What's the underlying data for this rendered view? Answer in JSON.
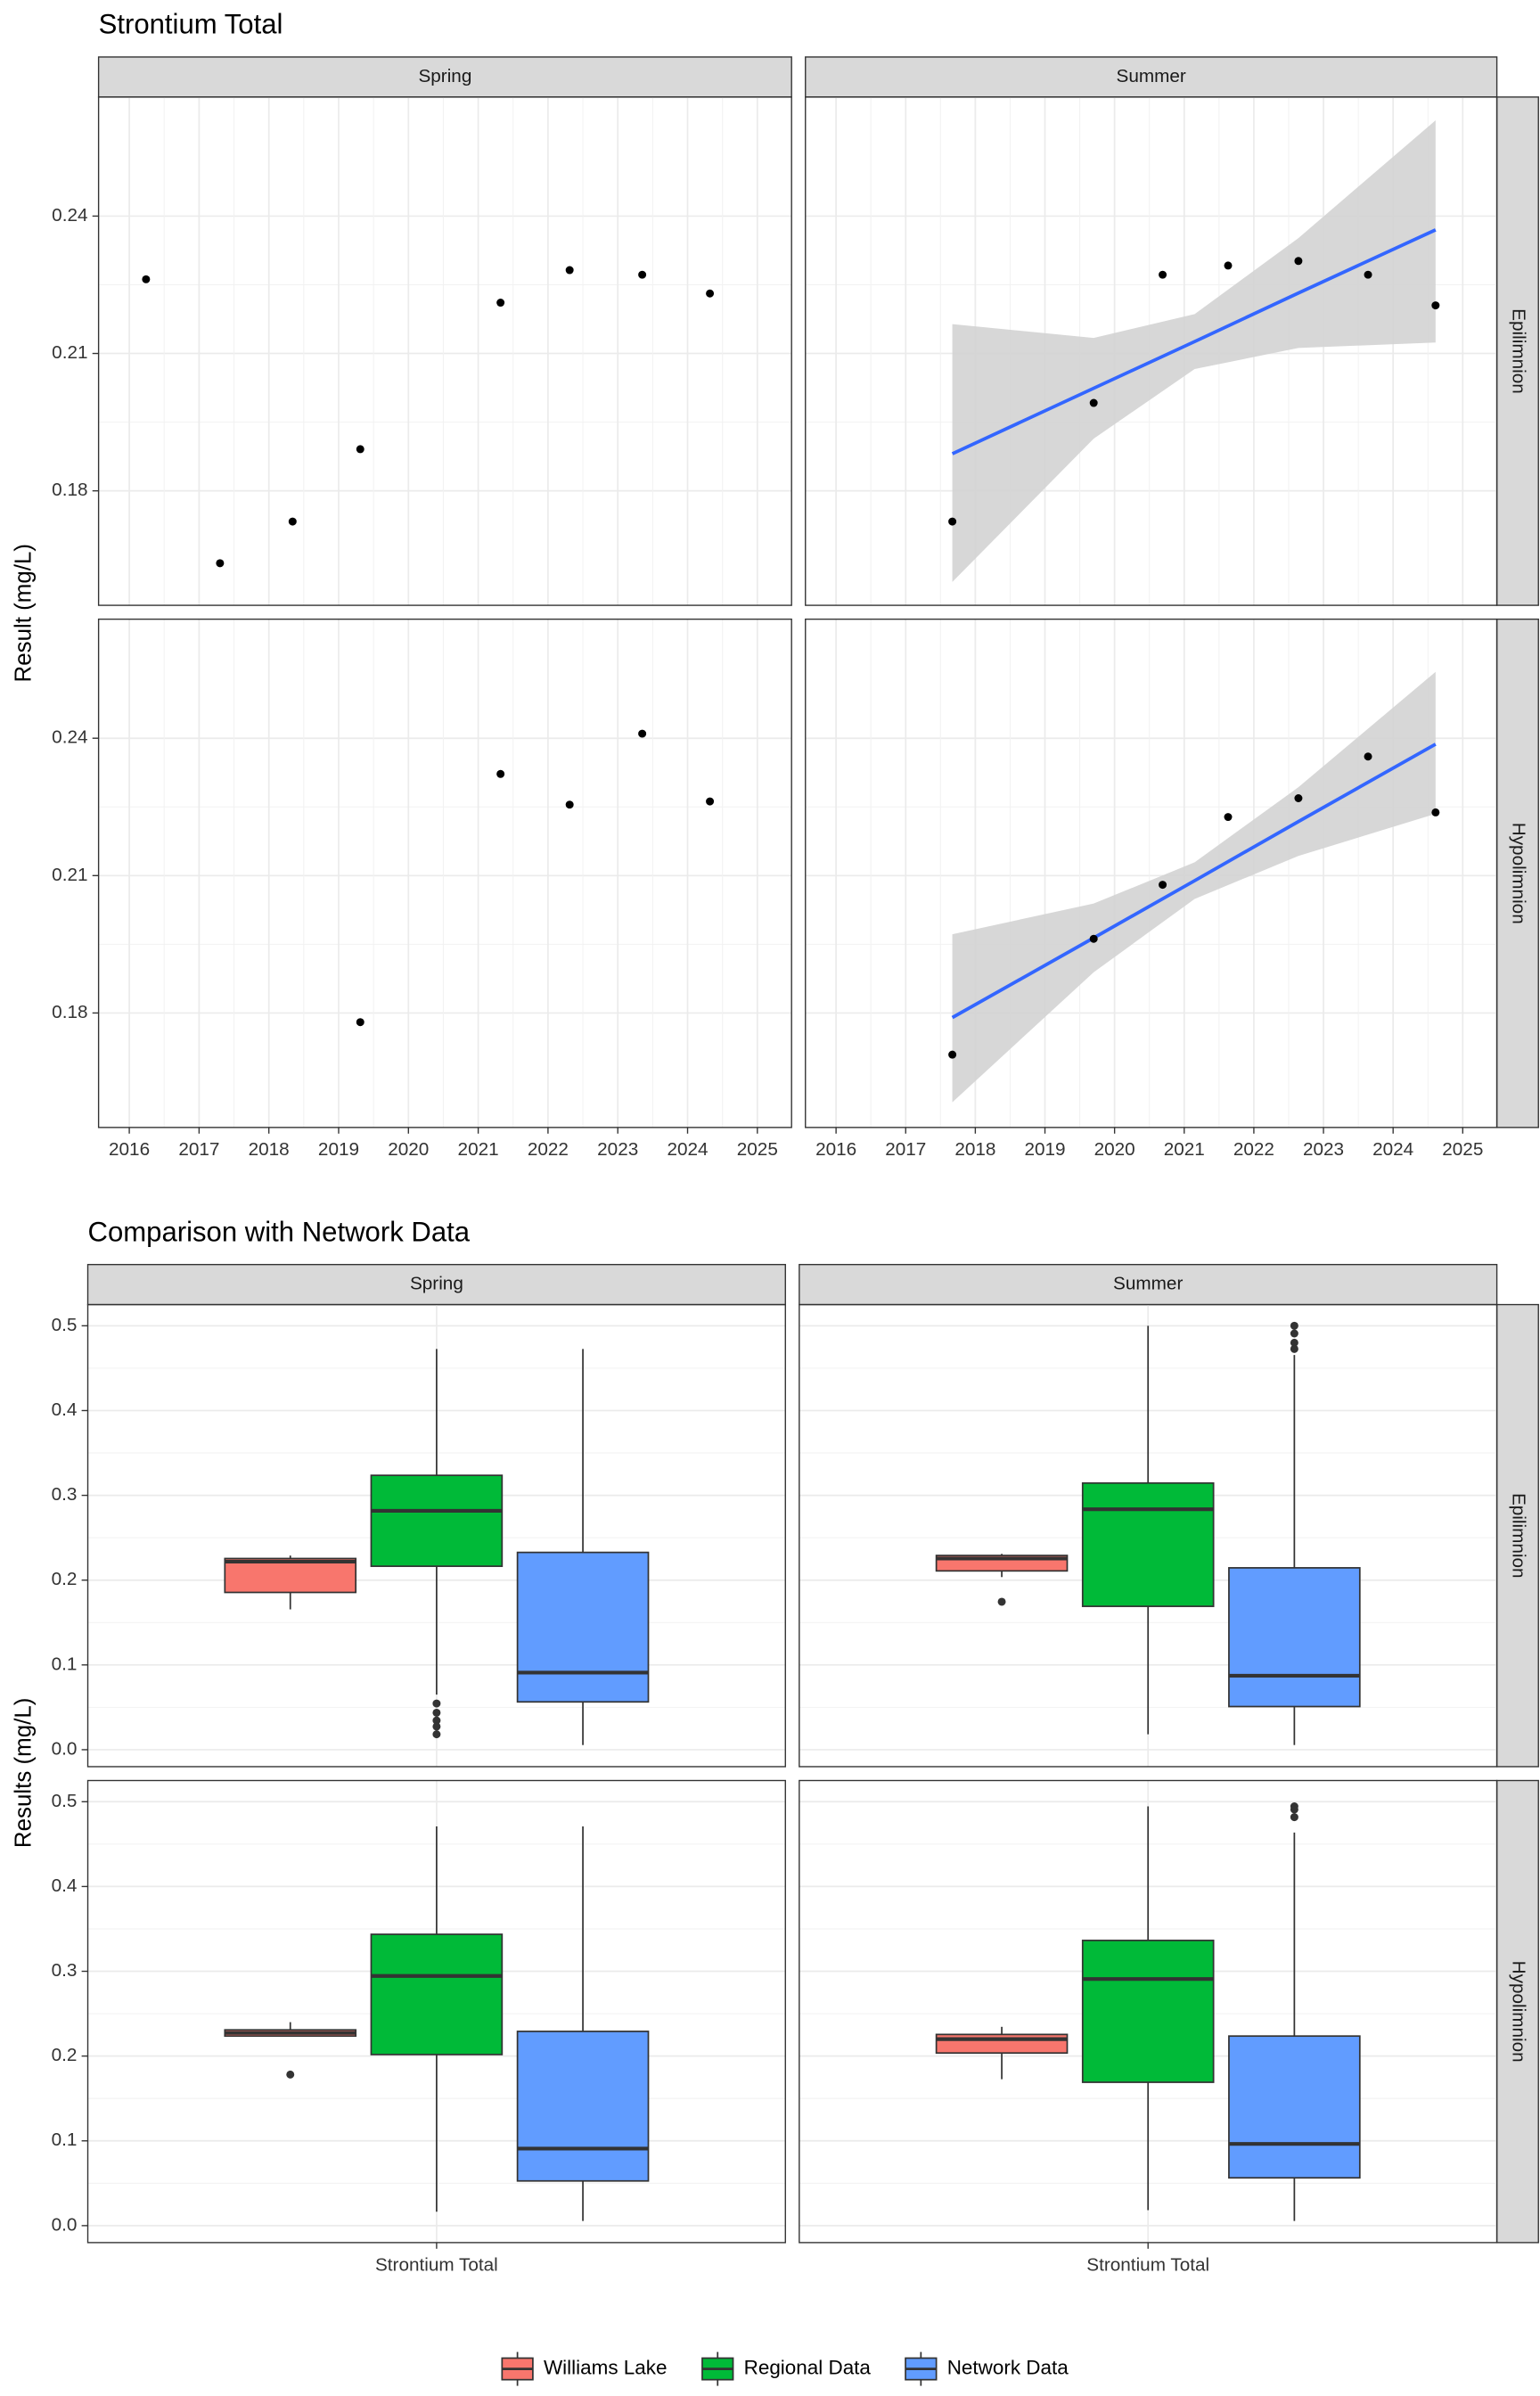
{
  "chart_data": [
    {
      "type": "scatter",
      "title": "Strontium Total",
      "y_label": "Result (mg/L)",
      "columns": [
        "Spring",
        "Summer"
      ],
      "rows": [
        "Epilimnion",
        "Hypolimnion"
      ],
      "xlim": [
        2015.56,
        2025.49
      ],
      "xticks": [
        2016,
        2017,
        2018,
        2019,
        2020,
        2021,
        2022,
        2023,
        2024,
        2025
      ],
      "ylim": [
        0.155,
        0.266
      ],
      "yticks": [
        0.18,
        0.21,
        0.24
      ],
      "grid": true,
      "point_color": "#000000",
      "trend_color": "#3366ff",
      "band_color": "#d3d3d3",
      "panels": [
        [
          {
            "x": [
              2016.24,
              2017.3,
              2018.34,
              2019.31,
              2021.32,
              2022.31,
              2023.35,
              2024.32
            ],
            "values": [
              0.2262,
              0.1642,
              0.1733,
              0.1891,
              0.2211,
              0.2282,
              0.2272,
              0.2231
            ]
          },
          {
            "x": [
              2017.67,
              2019.7,
              2020.69,
              2021.63,
              2022.64,
              2023.64,
              2024.61
            ],
            "values": [
              0.1733,
              0.1992,
              0.2272,
              0.2292,
              0.2302,
              0.2272,
              0.2205
            ],
            "trend": {
              "x": [
                2017.67,
                2019.7,
                2021.15,
                2022.64,
                2024.61
              ],
              "fit": [
                0.1881,
                0.2024,
                0.2126,
                0.2232,
                0.237
              ],
              "lower": [
                0.1601,
                0.1914,
                0.2066,
                0.2112,
                0.2124
              ],
              "upper": [
                0.2164,
                0.2134,
                0.2186,
                0.2352,
                0.2609
              ]
            }
          }
        ],
        [
          {
            "x": [
              2019.31,
              2021.32,
              2022.31,
              2023.35,
              2024.32
            ],
            "values": [
              0.178,
              0.2322,
              0.2255,
              0.241,
              0.2262
            ]
          },
          {
            "x": [
              2017.67,
              2019.7,
              2020.69,
              2021.63,
              2022.64,
              2023.64,
              2024.61
            ],
            "values": [
              0.1709,
              0.1962,
              0.208,
              0.2228,
              0.2269,
              0.236,
              0.2238
            ],
            "trend": {
              "x": [
                2017.67,
                2019.7,
                2021.15,
                2022.64,
                2024.61
              ],
              "fit": [
                0.179,
                0.1964,
                0.2089,
                0.2218,
                0.2387
              ],
              "lower": [
                0.1605,
                0.1889,
                0.2049,
                0.2143,
                0.2235
              ],
              "upper": [
                0.1972,
                0.2039,
                0.2129,
                0.2293,
                0.2545
              ]
            }
          }
        ]
      ]
    },
    {
      "type": "box",
      "title": "Comparison with Network Data",
      "y_label": "Results (mg/L)",
      "columns": [
        "Spring",
        "Summer"
      ],
      "rows": [
        "Epilimnion",
        "Hypolimnion"
      ],
      "categories": [
        "Strontium Total"
      ],
      "ylim": [
        -0.02,
        0.525
      ],
      "yticks": [
        {
          "value": 0,
          "label": "0.0"
        },
        0.1,
        0.2,
        0.3,
        0.4,
        0.5
      ],
      "grid": true,
      "legend": "bottom",
      "series": [
        {
          "name": "Williams Lake",
          "color": "#f8766d"
        },
        {
          "name": "Regional Data",
          "color": "#00ba38"
        },
        {
          "name": "Network Data",
          "color": "#619cff"
        }
      ],
      "panels": [
        [
          [
            {
              "low": 0.1655,
              "q1": 0.1855,
              "median": 0.2218,
              "q3": 0.2255,
              "high": 0.229
            },
            {
              "low": 0.065,
              "q1": 0.2164,
              "median": 0.2818,
              "q3": 0.3236,
              "high": 0.4727,
              "outliers": [
                0.0545,
                0.0436,
                0.0345,
                0.0273,
                0.0182
              ]
            },
            {
              "low": 0.0055,
              "q1": 0.0564,
              "median": 0.0909,
              "q3": 0.2327,
              "high": 0.4727
            }
          ],
          [
            {
              "low": 0.2036,
              "q1": 0.2109,
              "median": 0.2255,
              "q3": 0.2291,
              "high": 0.231,
              "outliers": [
                0.1745
              ]
            },
            {
              "low": 0.0182,
              "q1": 0.1691,
              "median": 0.2836,
              "q3": 0.3145,
              "high": 0.5
            },
            {
              "low": 0.0055,
              "q1": 0.0509,
              "median": 0.0873,
              "q3": 0.2145,
              "high": 0.4655,
              "outliers": [
                0.5,
                0.4909,
                0.48,
                0.4727
              ]
            }
          ]
        ],
        [
          [
            {
              "low": 0.2236,
              "q1": 0.2236,
              "median": 0.2273,
              "q3": 0.2309,
              "high": 0.24,
              "outliers": [
                0.1782
              ]
            },
            {
              "low": 0.0164,
              "q1": 0.2018,
              "median": 0.2945,
              "q3": 0.3436,
              "high": 0.4709
            },
            {
              "low": 0.0055,
              "q1": 0.0527,
              "median": 0.0909,
              "q3": 0.2291,
              "high": 0.4709
            }
          ],
          [
            {
              "low": 0.1727,
              "q1": 0.2036,
              "median": 0.22,
              "q3": 0.2255,
              "high": 0.2345
            },
            {
              "low": 0.0182,
              "q1": 0.1691,
              "median": 0.2909,
              "q3": 0.3364,
              "high": 0.4945
            },
            {
              "low": 0.0055,
              "q1": 0.0564,
              "median": 0.0964,
              "q3": 0.2236,
              "high": 0.4636,
              "outliers": [
                0.4945,
                0.4909,
                0.4818
              ]
            }
          ]
        ]
      ]
    }
  ]
}
